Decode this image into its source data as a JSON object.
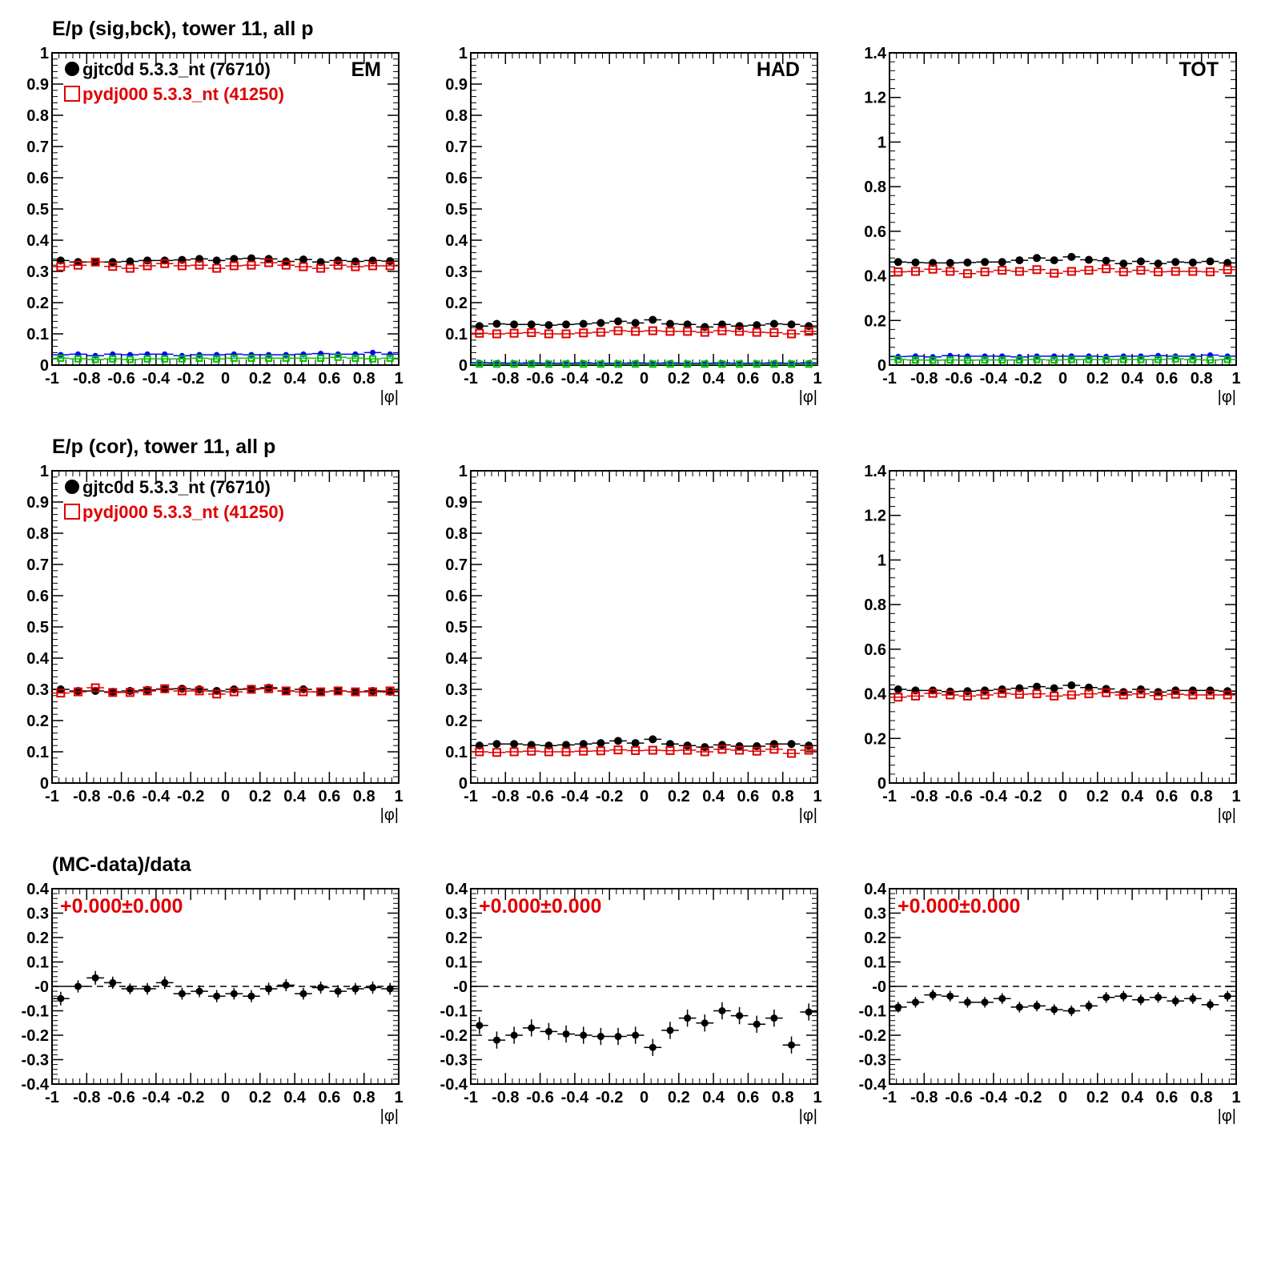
{
  "colors": {
    "data": "#000000",
    "mc": "#e00000",
    "bck_data": "#0000ff",
    "bck_mc": "#00c000"
  },
  "rows": [
    {
      "title": "E/p (sig,bck), tower 11, all p"
    },
    {
      "title": "E/p (cor), tower 11, all p"
    },
    {
      "title": "(MC-data)/data"
    }
  ],
  "legend": {
    "data_label": "gjtc0d 5.3.3_nt (76710)",
    "mc_label": "pydj000 5.3.3_nt (41250)"
  },
  "chart_data": [
    {
      "type": "scatter",
      "panel": "sigbck-em",
      "corner_label": "EM",
      "xlabel": "|φ|",
      "xlim": [
        -1,
        1
      ],
      "ylim": [
        0,
        1
      ],
      "legend": true,
      "xticks": [
        "-1",
        "-0.8",
        "-0.6",
        "-0.4",
        "-0.2",
        "0",
        "0.2",
        "0.4",
        "0.6",
        "0.8",
        "1"
      ],
      "yticks": [
        "0",
        "0.1",
        "0.2",
        "0.3",
        "0.4",
        "0.5",
        "0.6",
        "0.7",
        "0.8",
        "0.9",
        "1"
      ],
      "x": [
        -0.95,
        -0.85,
        -0.75,
        -0.65,
        -0.55,
        -0.45,
        -0.35,
        -0.25,
        -0.15,
        -0.05,
        0.05,
        0.15,
        0.25,
        0.35,
        0.45,
        0.55,
        0.65,
        0.75,
        0.85,
        0.95
      ],
      "series": [
        {
          "role": "data",
          "values": [
            0.335,
            0.33,
            0.33,
            0.33,
            0.332,
            0.335,
            0.335,
            0.337,
            0.34,
            0.335,
            0.34,
            0.342,
            0.34,
            0.332,
            0.338,
            0.33,
            0.335,
            0.332,
            0.335,
            0.333
          ]
        },
        {
          "role": "mc",
          "values": [
            0.315,
            0.32,
            0.33,
            0.316,
            0.31,
            0.318,
            0.325,
            0.318,
            0.32,
            0.31,
            0.318,
            0.32,
            0.328,
            0.32,
            0.315,
            0.31,
            0.32,
            0.315,
            0.318,
            0.318
          ]
        },
        {
          "role": "bck_data",
          "values": [
            0.033,
            0.035,
            0.03,
            0.035,
            0.033,
            0.035,
            0.035,
            0.03,
            0.033,
            0.033,
            0.035,
            0.033,
            0.033,
            0.033,
            0.035,
            0.037,
            0.035,
            0.035,
            0.04,
            0.035
          ]
        },
        {
          "role": "bck_mc",
          "values": [
            0.022,
            0.02,
            0.018,
            0.02,
            0.018,
            0.02,
            0.02,
            0.02,
            0.022,
            0.02,
            0.022,
            0.022,
            0.022,
            0.022,
            0.022,
            0.022,
            0.025,
            0.022,
            0.02,
            0.022
          ]
        }
      ]
    },
    {
      "type": "scatter",
      "panel": "sigbck-had",
      "corner_label": "HAD",
      "xlabel": "|φ|",
      "xlim": [
        -1,
        1
      ],
      "ylim": [
        0,
        1
      ],
      "legend": false,
      "xticks": [
        "-1",
        "-0.8",
        "-0.6",
        "-0.4",
        "-0.2",
        "0",
        "0.2",
        "0.4",
        "0.6",
        "0.8",
        "1"
      ],
      "yticks": [
        "0",
        "0.1",
        "0.2",
        "0.3",
        "0.4",
        "0.5",
        "0.6",
        "0.7",
        "0.8",
        "0.9",
        "1"
      ],
      "x": [
        -0.95,
        -0.85,
        -0.75,
        -0.65,
        -0.55,
        -0.45,
        -0.35,
        -0.25,
        -0.15,
        -0.05,
        0.05,
        0.15,
        0.25,
        0.35,
        0.45,
        0.55,
        0.65,
        0.75,
        0.85,
        0.95
      ],
      "series": [
        {
          "role": "data",
          "values": [
            0.125,
            0.132,
            0.13,
            0.13,
            0.128,
            0.13,
            0.132,
            0.135,
            0.14,
            0.135,
            0.145,
            0.132,
            0.13,
            0.122,
            0.13,
            0.125,
            0.128,
            0.132,
            0.13,
            0.125
          ]
        },
        {
          "role": "mc",
          "values": [
            0.102,
            0.1,
            0.102,
            0.104,
            0.1,
            0.1,
            0.103,
            0.105,
            0.11,
            0.108,
            0.11,
            0.108,
            0.108,
            0.105,
            0.11,
            0.108,
            0.105,
            0.104,
            0.1,
            0.108
          ]
        },
        {
          "role": "bck_data",
          "values": [
            0.008,
            0.007,
            0.006,
            0.007,
            0.006,
            0.006,
            0.007,
            0.006,
            0.006,
            0.007,
            0.006,
            0.007,
            0.006,
            0.006,
            0.007,
            0.006,
            0.006,
            0.007,
            0.006,
            0.007
          ]
        },
        {
          "role": "bck_mc",
          "values": [
            0.003,
            0.003,
            0.003,
            0.003,
            0.003,
            0.003,
            0.003,
            0.003,
            0.003,
            0.003,
            0.003,
            0.003,
            0.003,
            0.003,
            0.003,
            0.003,
            0.003,
            0.003,
            0.003,
            0.003
          ]
        }
      ]
    },
    {
      "type": "scatter",
      "panel": "sigbck-tot",
      "corner_label": "TOT",
      "xlabel": "|φ|",
      "xlim": [
        -1,
        1
      ],
      "ylim": [
        0,
        1.4
      ],
      "legend": false,
      "xticks": [
        "-1",
        "-0.8",
        "-0.6",
        "-0.4",
        "-0.2",
        "0",
        "0.2",
        "0.4",
        "0.6",
        "0.8",
        "1"
      ],
      "yticks": [
        "0",
        "0.2",
        "0.4",
        "0.6",
        "0.8",
        "1",
        "1.2",
        "1.4"
      ],
      "x": [
        -0.95,
        -0.85,
        -0.75,
        -0.65,
        -0.55,
        -0.45,
        -0.35,
        -0.25,
        -0.15,
        -0.05,
        0.05,
        0.15,
        0.25,
        0.35,
        0.45,
        0.55,
        0.65,
        0.75,
        0.85,
        0.95
      ],
      "series": [
        {
          "role": "data",
          "values": [
            0.462,
            0.46,
            0.458,
            0.458,
            0.46,
            0.462,
            0.462,
            0.47,
            0.48,
            0.47,
            0.485,
            0.472,
            0.468,
            0.455,
            0.465,
            0.455,
            0.462,
            0.46,
            0.465,
            0.458
          ]
        },
        {
          "role": "mc",
          "values": [
            0.418,
            0.42,
            0.43,
            0.42,
            0.41,
            0.418,
            0.425,
            0.42,
            0.428,
            0.412,
            0.42,
            0.425,
            0.432,
            0.418,
            0.425,
            0.418,
            0.42,
            0.42,
            0.418,
            0.428
          ]
        },
        {
          "role": "bck_data",
          "values": [
            0.038,
            0.04,
            0.037,
            0.042,
            0.04,
            0.04,
            0.04,
            0.037,
            0.04,
            0.04,
            0.04,
            0.04,
            0.038,
            0.04,
            0.04,
            0.042,
            0.04,
            0.04,
            0.045,
            0.04
          ]
        },
        {
          "role": "bck_mc",
          "values": [
            0.025,
            0.023,
            0.022,
            0.023,
            0.022,
            0.023,
            0.023,
            0.023,
            0.025,
            0.023,
            0.025,
            0.025,
            0.025,
            0.025,
            0.025,
            0.025,
            0.028,
            0.025,
            0.023,
            0.025
          ]
        }
      ]
    },
    {
      "type": "scatter",
      "panel": "cor-em",
      "corner_label": "",
      "xlabel": "|φ|",
      "xlim": [
        -1,
        1
      ],
      "ylim": [
        0,
        1
      ],
      "legend": true,
      "xticks": [
        "-1",
        "-0.8",
        "-0.6",
        "-0.4",
        "-0.2",
        "0",
        "0.2",
        "0.4",
        "0.6",
        "0.8",
        "1"
      ],
      "yticks": [
        "0",
        "0.1",
        "0.2",
        "0.3",
        "0.4",
        "0.5",
        "0.6",
        "0.7",
        "0.8",
        "0.9",
        "1"
      ],
      "x": [
        -0.95,
        -0.85,
        -0.75,
        -0.65,
        -0.55,
        -0.45,
        -0.35,
        -0.25,
        -0.15,
        -0.05,
        0.05,
        0.15,
        0.25,
        0.35,
        0.45,
        0.55,
        0.65,
        0.75,
        0.85,
        0.95
      ],
      "series": [
        {
          "role": "data",
          "values": [
            0.3,
            0.295,
            0.295,
            0.292,
            0.295,
            0.298,
            0.3,
            0.302,
            0.3,
            0.295,
            0.3,
            0.302,
            0.305,
            0.295,
            0.3,
            0.292,
            0.295,
            0.292,
            0.295,
            0.292
          ]
        },
        {
          "role": "mc",
          "values": [
            0.288,
            0.292,
            0.305,
            0.29,
            0.29,
            0.295,
            0.302,
            0.295,
            0.295,
            0.285,
            0.292,
            0.3,
            0.302,
            0.295,
            0.292,
            0.292,
            0.295,
            0.292,
            0.292,
            0.295
          ]
        }
      ]
    },
    {
      "type": "scatter",
      "panel": "cor-had",
      "corner_label": "",
      "xlabel": "|φ|",
      "xlim": [
        -1,
        1
      ],
      "ylim": [
        0,
        1
      ],
      "legend": false,
      "xticks": [
        "-1",
        "-0.8",
        "-0.6",
        "-0.4",
        "-0.2",
        "0",
        "0.2",
        "0.4",
        "0.6",
        "0.8",
        "1"
      ],
      "yticks": [
        "0",
        "0.1",
        "0.2",
        "0.3",
        "0.4",
        "0.5",
        "0.6",
        "0.7",
        "0.8",
        "0.9",
        "1"
      ],
      "x": [
        -0.95,
        -0.85,
        -0.75,
        -0.65,
        -0.55,
        -0.45,
        -0.35,
        -0.25,
        -0.15,
        -0.05,
        0.05,
        0.15,
        0.25,
        0.35,
        0.45,
        0.55,
        0.65,
        0.75,
        0.85,
        0.95
      ],
      "series": [
        {
          "role": "data",
          "values": [
            0.12,
            0.125,
            0.125,
            0.122,
            0.12,
            0.122,
            0.125,
            0.128,
            0.135,
            0.128,
            0.14,
            0.125,
            0.12,
            0.115,
            0.122,
            0.118,
            0.118,
            0.125,
            0.125,
            0.12
          ]
        },
        {
          "role": "mc",
          "values": [
            0.1,
            0.098,
            0.1,
            0.102,
            0.1,
            0.1,
            0.102,
            0.103,
            0.106,
            0.104,
            0.105,
            0.104,
            0.105,
            0.1,
            0.108,
            0.105,
            0.102,
            0.108,
            0.095,
            0.105
          ]
        }
      ]
    },
    {
      "type": "scatter",
      "panel": "cor-tot",
      "corner_label": "",
      "xlabel": "|φ|",
      "xlim": [
        -1,
        1
      ],
      "ylim": [
        0,
        1.4
      ],
      "legend": false,
      "xticks": [
        "-1",
        "-0.8",
        "-0.6",
        "-0.4",
        "-0.2",
        "0",
        "0.2",
        "0.4",
        "0.6",
        "0.8",
        "1"
      ],
      "yticks": [
        "0",
        "0.2",
        "0.4",
        "0.6",
        "0.8",
        "1",
        "1.2",
        "1.4"
      ],
      "x": [
        -0.95,
        -0.85,
        -0.75,
        -0.65,
        -0.55,
        -0.45,
        -0.35,
        -0.25,
        -0.15,
        -0.05,
        0.05,
        0.15,
        0.25,
        0.35,
        0.45,
        0.55,
        0.65,
        0.75,
        0.85,
        0.95
      ],
      "series": [
        {
          "role": "data",
          "values": [
            0.42,
            0.415,
            0.415,
            0.41,
            0.412,
            0.415,
            0.42,
            0.425,
            0.432,
            0.425,
            0.438,
            0.428,
            0.422,
            0.408,
            0.42,
            0.408,
            0.415,
            0.415,
            0.415,
            0.412
          ]
        },
        {
          "role": "mc",
          "values": [
            0.385,
            0.39,
            0.402,
            0.395,
            0.39,
            0.395,
            0.402,
            0.398,
            0.4,
            0.39,
            0.395,
            0.4,
            0.405,
            0.395,
            0.4,
            0.392,
            0.398,
            0.395,
            0.395,
            0.395
          ]
        }
      ]
    },
    {
      "type": "scatter",
      "panel": "ratio-em",
      "corner_label": "",
      "xlabel": "|φ|",
      "xlim": [
        -1,
        1
      ],
      "ylim": [
        -0.4,
        0.4
      ],
      "fit_text": "+0.000±0.000",
      "reference_line": 0,
      "xticks": [
        "-1",
        "-0.8",
        "-0.6",
        "-0.4",
        "-0.2",
        "0",
        "0.2",
        "0.4",
        "0.6",
        "0.8",
        "1"
      ],
      "yticks": [
        "-0.4",
        "-0.3",
        "-0.2",
        "-0.1",
        "-0",
        "0.1",
        "0.2",
        "0.3",
        "0.4"
      ],
      "x": [
        -0.95,
        -0.85,
        -0.75,
        -0.65,
        -0.55,
        -0.45,
        -0.35,
        -0.25,
        -0.15,
        -0.05,
        0.05,
        0.15,
        0.25,
        0.35,
        0.45,
        0.55,
        0.65,
        0.75,
        0.85,
        0.95
      ],
      "values": [
        -0.05,
        0.0,
        0.035,
        0.015,
        -0.01,
        -0.01,
        0.015,
        -0.03,
        -0.02,
        -0.04,
        -0.03,
        -0.04,
        -0.01,
        0.005,
        -0.03,
        -0.005,
        -0.02,
        -0.01,
        -0.005,
        -0.01
      ],
      "errors": [
        0.028,
        0.025,
        0.028,
        0.025,
        0.022,
        0.024,
        0.026,
        0.024,
        0.024,
        0.025,
        0.024,
        0.025,
        0.025,
        0.025,
        0.024,
        0.025,
        0.025,
        0.024,
        0.025,
        0.024
      ]
    },
    {
      "type": "scatter",
      "panel": "ratio-had",
      "corner_label": "",
      "xlabel": "|φ|",
      "xlim": [
        -1,
        1
      ],
      "ylim": [
        -0.4,
        0.4
      ],
      "fit_text": "+0.000±0.000",
      "reference_line": 0,
      "xticks": [
        "-1",
        "-0.8",
        "-0.6",
        "-0.4",
        "-0.2",
        "0",
        "0.2",
        "0.4",
        "0.6",
        "0.8",
        "1"
      ],
      "yticks": [
        "-0.4",
        "-0.3",
        "-0.2",
        "-0.1",
        "-0",
        "0.1",
        "0.2",
        "0.3",
        "0.4"
      ],
      "x": [
        -0.95,
        -0.85,
        -0.75,
        -0.65,
        -0.55,
        -0.45,
        -0.35,
        -0.25,
        -0.15,
        -0.05,
        0.05,
        0.15,
        0.25,
        0.35,
        0.45,
        0.55,
        0.65,
        0.75,
        0.85,
        0.95
      ],
      "values": [
        -0.16,
        -0.22,
        -0.2,
        -0.17,
        -0.185,
        -0.195,
        -0.2,
        -0.205,
        -0.205,
        -0.2,
        -0.25,
        -0.18,
        -0.13,
        -0.15,
        -0.1,
        -0.12,
        -0.155,
        -0.13,
        -0.24,
        -0.105
      ],
      "errors": [
        0.035,
        0.035,
        0.035,
        0.035,
        0.035,
        0.035,
        0.035,
        0.035,
        0.035,
        0.035,
        0.035,
        0.035,
        0.035,
        0.035,
        0.035,
        0.035,
        0.035,
        0.035,
        0.035,
        0.035
      ]
    },
    {
      "type": "scatter",
      "panel": "ratio-tot",
      "corner_label": "",
      "xlabel": "|φ|",
      "xlim": [
        -1,
        1
      ],
      "ylim": [
        -0.4,
        0.4
      ],
      "fit_text": "+0.000±0.000",
      "reference_line": 0,
      "xticks": [
        "-1",
        "-0.8",
        "-0.6",
        "-0.4",
        "-0.2",
        "0",
        "0.2",
        "0.4",
        "0.6",
        "0.8",
        "1"
      ],
      "yticks": [
        "-0.4",
        "-0.3",
        "-0.2",
        "-0.1",
        "-0",
        "0.1",
        "0.2",
        "0.3",
        "0.4"
      ],
      "x": [
        -0.95,
        -0.85,
        -0.75,
        -0.65,
        -0.55,
        -0.45,
        -0.35,
        -0.25,
        -0.15,
        -0.05,
        0.05,
        0.15,
        0.25,
        0.35,
        0.45,
        0.55,
        0.65,
        0.75,
        0.85,
        0.95
      ],
      "values": [
        -0.085,
        -0.065,
        -0.035,
        -0.04,
        -0.065,
        -0.065,
        -0.05,
        -0.085,
        -0.08,
        -0.095,
        -0.1,
        -0.08,
        -0.045,
        -0.04,
        -0.055,
        -0.045,
        -0.06,
        -0.05,
        -0.075,
        -0.04
      ],
      "errors": [
        0.022,
        0.022,
        0.022,
        0.022,
        0.022,
        0.022,
        0.022,
        0.022,
        0.022,
        0.022,
        0.022,
        0.022,
        0.022,
        0.022,
        0.022,
        0.022,
        0.022,
        0.022,
        0.022,
        0.022
      ]
    }
  ]
}
